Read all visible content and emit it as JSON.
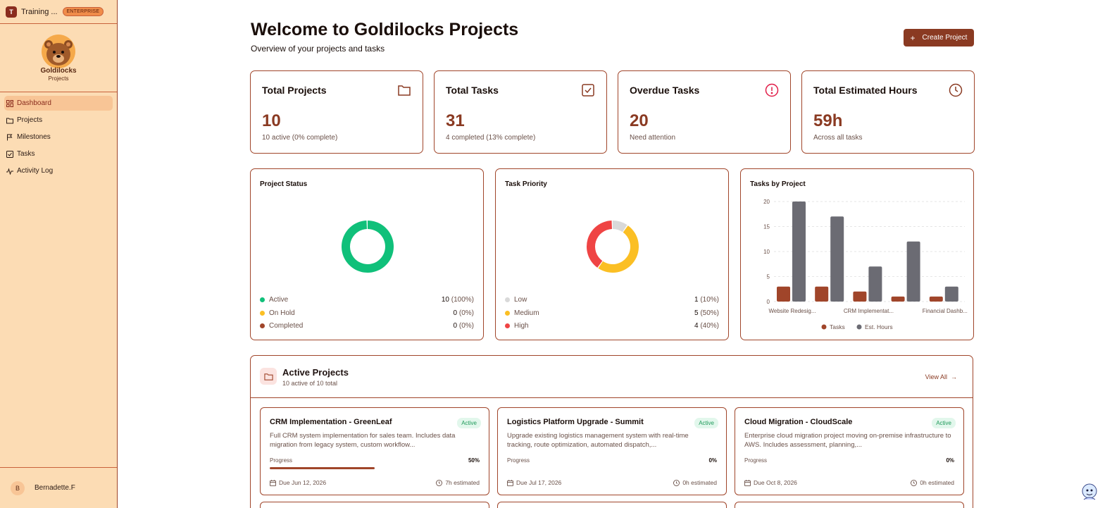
{
  "org": {
    "name": "Training ...",
    "badge": "ENTERPRISE",
    "initial": "T"
  },
  "logo": {
    "title": "Goldilocks",
    "subtitle": "Projects"
  },
  "nav": [
    {
      "label": "Dashboard",
      "icon": "dashboard-icon",
      "active": true
    },
    {
      "label": "Projects",
      "icon": "folder-icon"
    },
    {
      "label": "Milestones",
      "icon": "flag-icon"
    },
    {
      "label": "Tasks",
      "icon": "checkbox-icon"
    },
    {
      "label": "Activity Log",
      "icon": "activity-icon"
    }
  ],
  "user": {
    "initial": "B",
    "name": "Bernadette.F"
  },
  "header": {
    "title": "Welcome to Goldilocks Projects",
    "subtitle": "Overview of your projects and tasks",
    "create_label": "Create Project"
  },
  "stats": [
    {
      "title": "Total Projects",
      "value": "10",
      "note": "10 active (0% complete)",
      "icon": "folder-icon"
    },
    {
      "title": "Total Tasks",
      "value": "31",
      "note": "4 completed (13% complete)",
      "icon": "check-square-icon"
    },
    {
      "title": "Overdue Tasks",
      "value": "20",
      "note": "Need attention",
      "icon": "alert-circle-icon"
    },
    {
      "title": "Total Estimated Hours",
      "value": "59h",
      "note": "Across all tasks",
      "icon": "clock-icon"
    }
  ],
  "colors": {
    "accent": "#8a3a22",
    "active": "#10c07a",
    "onhold": "#fbbf24",
    "completed": "#a0452a",
    "low": "#d9d9d9",
    "medium": "#fbbf24",
    "high": "#ef4444",
    "tasks": "#a0452a",
    "hours": "#6b6b73"
  },
  "chart_data": [
    {
      "type": "pie",
      "title": "Project Status",
      "slices": [
        {
          "label": "Active",
          "value": 10,
          "pct": "(100%)",
          "color": "#10c07a"
        },
        {
          "label": "On Hold",
          "value": 0,
          "pct": "(0%)",
          "color": "#fbbf24"
        },
        {
          "label": "Completed",
          "value": 0,
          "pct": "(0%)",
          "color": "#a0452a"
        }
      ]
    },
    {
      "type": "pie",
      "title": "Task Priority",
      "slices": [
        {
          "label": "Low",
          "value": 1,
          "pct": "(10%)",
          "color": "#d9d9d9"
        },
        {
          "label": "Medium",
          "value": 5,
          "pct": "(50%)",
          "color": "#fbbf24"
        },
        {
          "label": "High",
          "value": 4,
          "pct": "(40%)",
          "color": "#ef4444"
        }
      ]
    },
    {
      "type": "bar",
      "title": "Tasks by Project",
      "categories": [
        "Website Redesig...",
        "",
        "CRM Implementat...",
        "",
        "Financial Dashb..."
      ],
      "series": [
        {
          "name": "Tasks",
          "values": [
            3,
            3,
            2,
            1,
            1
          ],
          "color": "#a0452a"
        },
        {
          "name": "Est. Hours",
          "values": [
            20,
            17,
            7,
            12,
            3
          ],
          "color": "#6b6b73"
        }
      ],
      "yticks": [
        "0",
        "5",
        "10",
        "15",
        "20"
      ],
      "ylim": [
        0,
        20
      ],
      "legend": "bottom"
    }
  ],
  "active_projects": {
    "title": "Active Projects",
    "subtitle": "10 active of 10 total",
    "view_all": "View All",
    "progress_label": "Progress",
    "items": [
      {
        "name": "CRM Implementation - GreenLeaf",
        "status": "Active",
        "desc": "Full CRM system implementation for sales team. Includes data migration from legacy system, custom workflow...",
        "progress": "50%",
        "progress_value": 50,
        "due": "Due Jun 12, 2026",
        "est": "7h estimated"
      },
      {
        "name": "Logistics Platform Upgrade - Summit",
        "status": "Active",
        "desc": "Upgrade existing logistics management system with real-time tracking, route optimization, automated dispatch,...",
        "progress": "0%",
        "progress_value": 0,
        "due": "Due Jul 17, 2026",
        "est": "0h estimated"
      },
      {
        "name": "Cloud Migration - CloudScale",
        "status": "Active",
        "desc": "Enterprise cloud migration project moving on-premise infrastructure to AWS. Includes assessment, planning,...",
        "progress": "0%",
        "progress_value": 0,
        "due": "Due Oct 8, 2026",
        "est": "0h estimated"
      }
    ]
  }
}
